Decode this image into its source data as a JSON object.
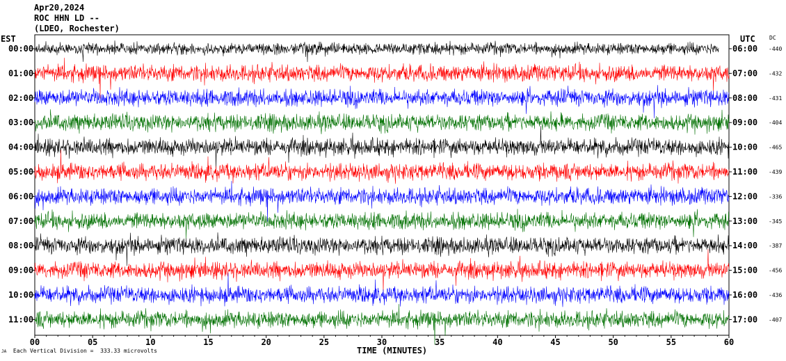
{
  "header": {
    "date": "Apr20,2024",
    "station": "ROC HHN LD --",
    "network": "(LDEO, Rochester)"
  },
  "chart_data": {
    "type": "line",
    "subtype": "helicorder",
    "xlabel": "TIME (MINUTES)",
    "x_ticks": [
      "00",
      "05",
      "10",
      "15",
      "20",
      "25",
      "30",
      "35",
      "40",
      "45",
      "50",
      "55",
      "60"
    ],
    "xlim": [
      0,
      60
    ],
    "left_axis_label": "EST",
    "right_axis_label": "UTC",
    "dc_label": "DC",
    "trace_colors": [
      "#000000",
      "#ff0000",
      "#0000ff",
      "#007000"
    ],
    "rows": [
      {
        "est": "00:00",
        "utc": "06:00",
        "dc": "-440"
      },
      {
        "est": "01:00",
        "utc": "07:00",
        "dc": "-432"
      },
      {
        "est": "02:00",
        "utc": "08:00",
        "dc": "-431"
      },
      {
        "est": "03:00",
        "utc": "09:00",
        "dc": "-404"
      },
      {
        "est": "04:00",
        "utc": "10:00",
        "dc": "-465"
      },
      {
        "est": "05:00",
        "utc": "11:00",
        "dc": "-439"
      },
      {
        "est": "06:00",
        "utc": "12:00",
        "dc": "-336"
      },
      {
        "est": "07:00",
        "utc": "13:00",
        "dc": "-345"
      },
      {
        "est": "08:00",
        "utc": "14:00",
        "dc": "-387"
      },
      {
        "est": "09:00",
        "utc": "15:00",
        "dc": "-456"
      },
      {
        "est": "10:00",
        "utc": "16:00",
        "dc": "-436"
      },
      {
        "est": "11:00",
        "utc": "17:00",
        "dc": "-407"
      }
    ]
  },
  "footer": {
    "note": "Each Vertical Division =  333.33 microvolts",
    "mark": "JA"
  }
}
